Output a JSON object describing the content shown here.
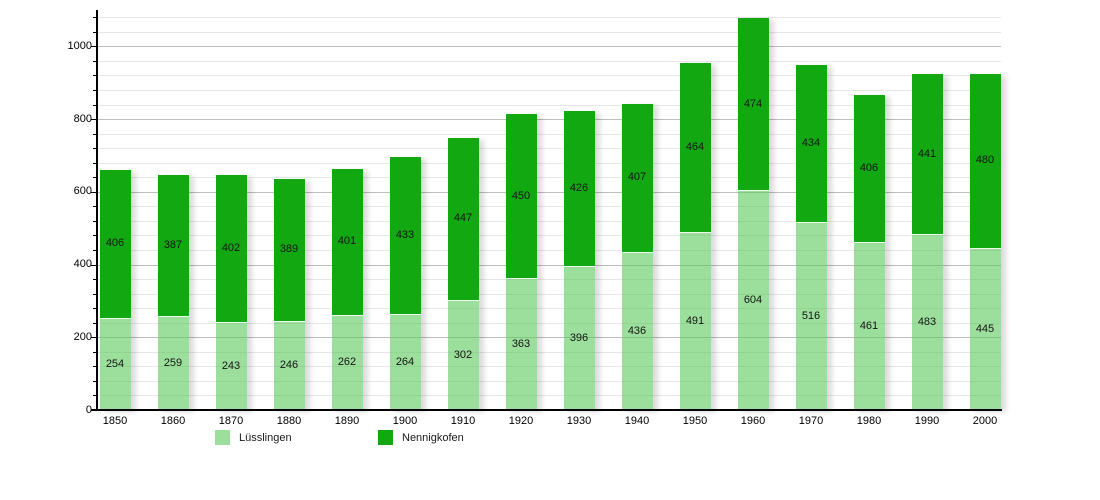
{
  "chart_data": {
    "type": "bar",
    "stacked": true,
    "title": "",
    "xlabel": "",
    "ylabel": "",
    "categories": [
      "1850",
      "1860",
      "1870",
      "1880",
      "1890",
      "1900",
      "1910",
      "1920",
      "1930",
      "1940",
      "1950",
      "1960",
      "1970",
      "1980",
      "1990",
      "2000"
    ],
    "series": [
      {
        "name": "Lüsslingen",
        "slug": "lusslingen",
        "color": "#9CDF9C",
        "color_rgba": "rgba(90,202,90,0.6)",
        "values": [
          254,
          259,
          243,
          246,
          262,
          264,
          302,
          363,
          396,
          436,
          491,
          604,
          516,
          461,
          483,
          445
        ]
      },
      {
        "name": "Nennigkofen",
        "slug": "nennigkofen",
        "color": "#12A812",
        "color_rgba": "#12A812",
        "values": [
          406,
          387,
          402,
          389,
          401,
          433,
          447,
          450,
          426,
          407,
          464,
          474,
          434,
          406,
          441,
          480
        ]
      }
    ],
    "ylim": [
      0,
      1100
    ],
    "y_major_ticks": [
      0,
      200,
      400,
      600,
      800,
      1000
    ],
    "y_minor_step": 40,
    "grid": "on",
    "legend_position": "bottom",
    "value_labels": "inside-segments"
  }
}
